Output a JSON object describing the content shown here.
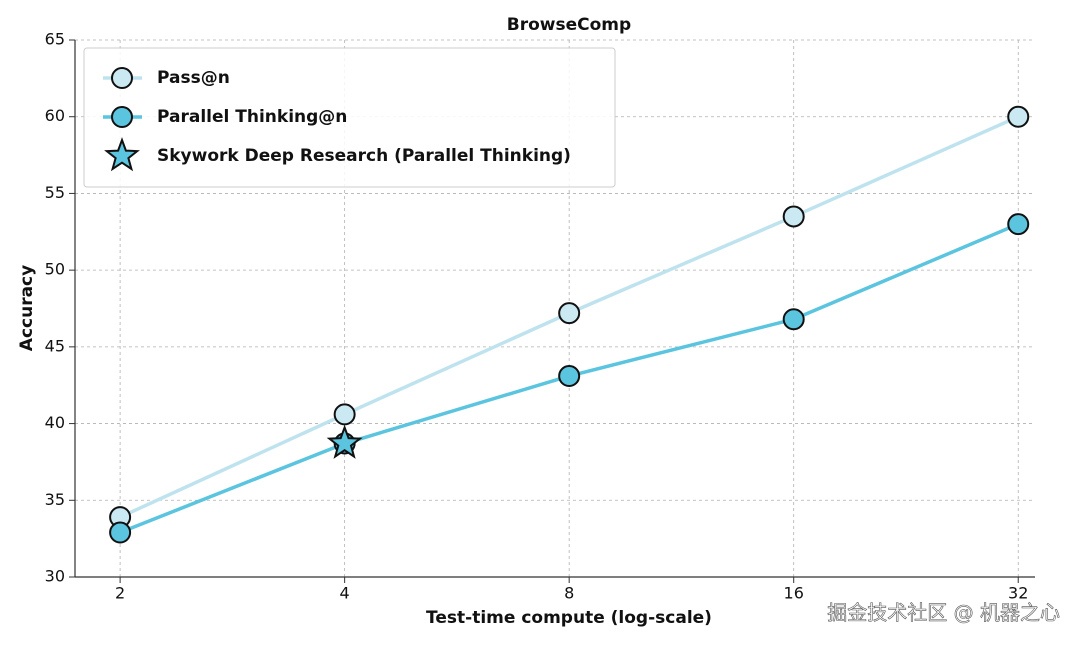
{
  "chart_data": {
    "type": "line",
    "title": "BrowseComp",
    "x_label": "Test-time compute (log-scale)",
    "y_label": "Accuracy",
    "x": [
      2,
      4,
      8,
      16,
      32
    ],
    "series": [
      {
        "name": "Pass@n",
        "color": "#bfe3ee",
        "marker_color": "#cbe9f3",
        "marker": "circle",
        "line": true,
        "values": [
          33.9,
          40.6,
          47.2,
          53.5,
          60
        ]
      },
      {
        "name": "Parallel Thinking@n",
        "color": "#5bc4df",
        "marker_color": "#5bc4df",
        "marker": "circle",
        "line": true,
        "values": [
          32.9,
          38.7,
          43.1,
          46.8,
          53
        ]
      },
      {
        "name": "Skywork Deep Research (Parallel Thinking)",
        "color": "#5bc4df",
        "marker_color": "#5bc4df",
        "marker": "star",
        "line": false,
        "x": [
          4
        ],
        "values": [
          38.7
        ]
      }
    ],
    "xlim": [
      1.74,
      33.7
    ],
    "ylim": [
      30,
      65
    ],
    "xticks": [
      2,
      4,
      8,
      16,
      32
    ],
    "yticks": [
      30,
      35,
      40,
      45,
      50,
      55,
      60,
      65
    ],
    "log_x": true,
    "grid": true,
    "legend": "upper left",
    "watermark": "掘金技术社区 @ 机器之心"
  }
}
